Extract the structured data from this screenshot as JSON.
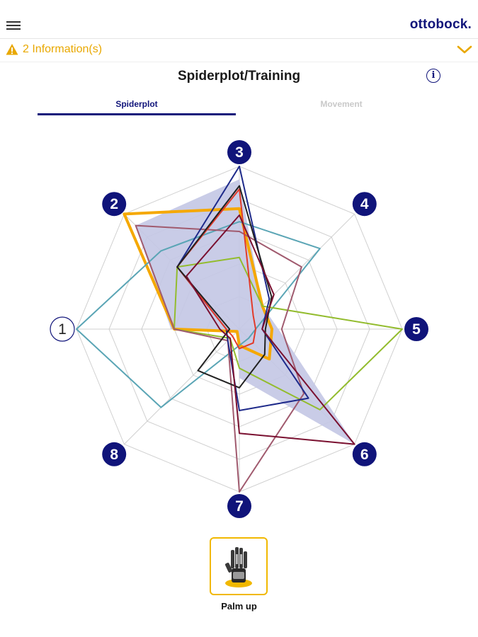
{
  "header": {
    "brand": "ottobock."
  },
  "info_bar": {
    "text": "2 Information(s)",
    "color": "#e9a800"
  },
  "page": {
    "title": "Spiderplot/Training",
    "help_icon": "info-circle-icon"
  },
  "tabs": [
    {
      "label": "Spiderplot",
      "active": true
    },
    {
      "label": "Movement",
      "active": false
    }
  ],
  "chart_data": {
    "type": "radar",
    "axes": [
      "1",
      "2",
      "3",
      "4",
      "5",
      "6",
      "7",
      "8"
    ],
    "axis_range": [
      0,
      5
    ],
    "active_axis": "1",
    "colors": {
      "axis_badge": "#10147a",
      "gridline": "#d0d0d0"
    },
    "target_area": {
      "fill": "#c3c6e4",
      "values": [
        2.1,
        4.5,
        4.6,
        1.0,
        1.2,
        5.0,
        1.5,
        0.1
      ]
    },
    "series": [
      {
        "color": "#f5a800",
        "width": 4,
        "values": [
          2.0,
          5.0,
          3.7,
          1.0,
          1.0,
          1.3,
          0.5,
          0.1
        ]
      },
      {
        "color": "#5aa5b5",
        "width": 2,
        "values": [
          5.0,
          3.4,
          3.3,
          3.5,
          0.5,
          0.4,
          0.5,
          3.4
        ]
      },
      {
        "color": "#93bc2e",
        "width": 2,
        "values": [
          2.0,
          2.7,
          2.2,
          1.0,
          5.0,
          3.5,
          1.2,
          0.4
        ]
      },
      {
        "color": "#a05a6e",
        "width": 2,
        "values": [
          2.0,
          4.5,
          3.0,
          2.7,
          1.3,
          2.8,
          5.0,
          0.5
        ]
      },
      {
        "color": "#1e2a8a",
        "width": 2,
        "values": [
          0.4,
          2.7,
          5.0,
          1.3,
          0.7,
          3.0,
          2.5,
          0.5
        ]
      },
      {
        "color": "#e23b2a",
        "width": 2,
        "values": [
          0.4,
          2.7,
          4.3,
          0.6,
          0.5,
          0.6,
          0.6,
          0.3
        ]
      },
      {
        "color": "#222222",
        "width": 2,
        "values": [
          0.3,
          2.7,
          4.4,
          1.4,
          0.8,
          1.1,
          1.8,
          1.8
        ]
      },
      {
        "color": "#7a1030",
        "width": 2,
        "values": [
          0.6,
          2.3,
          3.5,
          1.5,
          0.7,
          5.0,
          3.2,
          0.4
        ]
      }
    ]
  },
  "grip": {
    "label": "Palm up",
    "icon": "prosthetic-hand-icon",
    "color": "#f1b800"
  }
}
